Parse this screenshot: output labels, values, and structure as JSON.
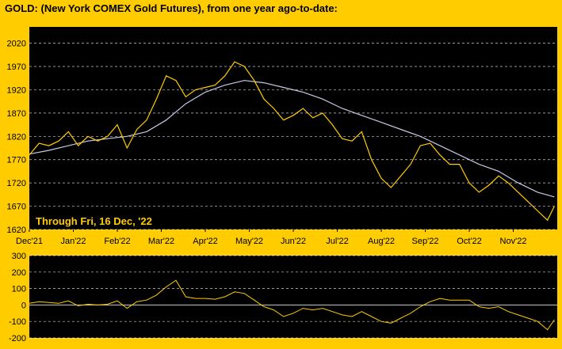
{
  "title": "GOLD:  (New York COMEX Gold Futures), from one year ago-to-date:",
  "colors": {
    "background": "#FFCC00",
    "plot_bg": "#000000",
    "price_line": "#FFCC00",
    "average_line": "#C8C8E8",
    "oscillator_line": "#FFCC00",
    "grid": "#FFFFFF"
  },
  "chart_data": [
    {
      "type": "line",
      "annotation": "Through Fri, 16 Dec, '22",
      "x_tick_labels": [
        "Dec'21",
        "Jan'22",
        "Feb'22",
        "Mar'22",
        "Apr'22",
        "May'22",
        "Jun'22",
        "Jul'22",
        "Aug'22",
        "Sep'22",
        "Oct'22",
        "Nov'22"
      ],
      "y_ticks": [
        1620,
        1670,
        1720,
        1770,
        1820,
        1870,
        1920,
        1970,
        2020
      ],
      "ylim": [
        1620,
        2055
      ],
      "grid": true,
      "grid_style": "dashed horizontal",
      "x_unit": "weeks since start",
      "x_range": [
        0,
        54
      ],
      "series": [
        {
          "role": "price",
          "x": [
            0,
            1,
            2,
            3,
            4,
            5,
            6,
            7,
            8,
            9,
            10,
            11,
            12,
            13,
            14,
            15,
            16,
            17,
            18,
            19,
            20,
            21,
            22,
            23,
            24,
            25,
            26,
            27,
            28,
            29,
            30,
            31,
            32,
            33,
            34,
            35,
            36,
            37,
            38,
            39,
            40,
            41,
            42,
            43,
            44,
            45,
            46,
            47,
            48,
            49,
            50,
            51,
            52,
            53,
            53.7
          ],
          "values": [
            1780,
            1805,
            1800,
            1810,
            1830,
            1800,
            1820,
            1810,
            1820,
            1845,
            1795,
            1835,
            1855,
            1900,
            1950,
            1940,
            1905,
            1920,
            1925,
            1930,
            1950,
            1980,
            1970,
            1940,
            1900,
            1880,
            1855,
            1865,
            1880,
            1860,
            1870,
            1845,
            1815,
            1810,
            1830,
            1770,
            1730,
            1710,
            1735,
            1760,
            1800,
            1805,
            1780,
            1760,
            1760,
            1720,
            1700,
            1715,
            1735,
            1720,
            1700,
            1680,
            1660,
            1640,
            1670
          ]
        },
        {
          "role": "moving average",
          "x": [
            0,
            2,
            4,
            6,
            8,
            10,
            12,
            14,
            16,
            18,
            20,
            22,
            24,
            26,
            28,
            30,
            32,
            34,
            36,
            38,
            40,
            42,
            44,
            46,
            48,
            50,
            52,
            53.7
          ],
          "values": [
            1782,
            1790,
            1800,
            1810,
            1815,
            1820,
            1830,
            1855,
            1890,
            1915,
            1930,
            1940,
            1935,
            1925,
            1915,
            1900,
            1880,
            1865,
            1850,
            1835,
            1820,
            1800,
            1780,
            1760,
            1745,
            1720,
            1700,
            1690
          ]
        }
      ]
    },
    {
      "type": "line",
      "role": "oscillator",
      "y_ticks": [
        300,
        200,
        100,
        0,
        -100,
        -200
      ],
      "ylim": [
        -200,
        300
      ],
      "zero_line": true,
      "x_unit": "weeks since start",
      "x_range": [
        0,
        54
      ],
      "series": [
        {
          "x": [
            0,
            1,
            2,
            3,
            4,
            5,
            6,
            7,
            8,
            9,
            10,
            11,
            12,
            13,
            14,
            15,
            16,
            17,
            18,
            19,
            20,
            21,
            22,
            23,
            24,
            25,
            26,
            27,
            28,
            29,
            30,
            31,
            32,
            33,
            34,
            35,
            36,
            37,
            38,
            39,
            40,
            41,
            42,
            43,
            44,
            45,
            46,
            47,
            48,
            49,
            50,
            51,
            52,
            53,
            53.7
          ],
          "values": [
            10,
            20,
            15,
            10,
            25,
            -5,
            5,
            0,
            5,
            25,
            -20,
            20,
            30,
            60,
            110,
            150,
            50,
            40,
            40,
            35,
            50,
            80,
            70,
            30,
            -10,
            -30,
            -70,
            -50,
            -20,
            -30,
            -20,
            -40,
            -60,
            -70,
            -40,
            -70,
            -100,
            -110,
            -80,
            -50,
            -10,
            20,
            40,
            30,
            30,
            30,
            -10,
            -20,
            -10,
            -40,
            -60,
            -80,
            -100,
            -150,
            -90
          ]
        }
      ]
    }
  ]
}
